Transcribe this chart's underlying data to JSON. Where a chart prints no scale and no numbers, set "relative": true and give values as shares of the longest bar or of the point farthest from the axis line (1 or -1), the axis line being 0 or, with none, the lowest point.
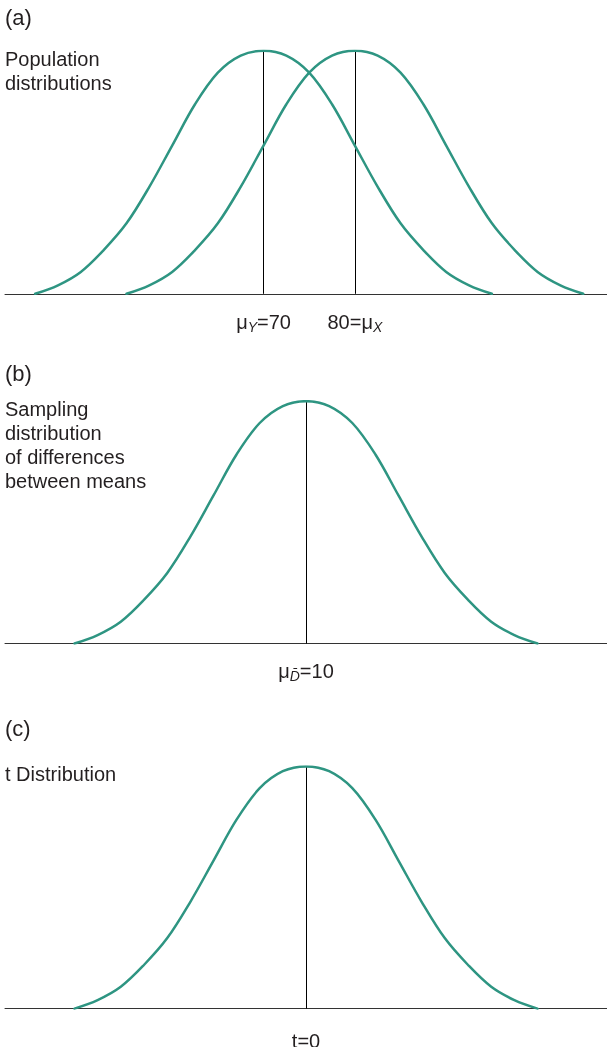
{
  "chart_data": [
    {
      "type": "line",
      "title": "(a)",
      "subtitle": "Population\ndistributions",
      "relative": true,
      "marker": "none",
      "tick_labels": "x",
      "xlim": [
        41.7,
        107.6
      ],
      "xticks": [
        {
          "value": 70,
          "label": "μ$_{Y}$=70"
        },
        {
          "value": 80,
          "label": "80=μ$_{X}$"
        }
      ],
      "series": [
        {
          "color": "#2e9582",
          "x": [
            45,
            47.5,
            50,
            52.5,
            55,
            57.5,
            60,
            62.5,
            65,
            67.5,
            70,
            72.5,
            75,
            77.5,
            80,
            82.5,
            85,
            87.5,
            90,
            92.5,
            95
          ],
          "values": [
            0,
            0.035,
            0.09,
            0.18,
            0.29,
            0.44,
            0.61,
            0.78,
            0.91,
            0.98,
            1,
            0.98,
            0.91,
            0.78,
            0.61,
            0.44,
            0.29,
            0.18,
            0.09,
            0.035,
            0
          ]
        },
        {
          "color": "#2e9582",
          "x": [
            55,
            57.5,
            60,
            62.5,
            65,
            67.5,
            70,
            72.5,
            75,
            77.5,
            80,
            82.5,
            85,
            87.5,
            90,
            92.5,
            95,
            97.5,
            100,
            102.5,
            105
          ],
          "values": [
            0,
            0.035,
            0.09,
            0.18,
            0.29,
            0.44,
            0.61,
            0.78,
            0.91,
            0.98,
            1,
            0.98,
            0.91,
            0.78,
            0.61,
            0.44,
            0.29,
            0.18,
            0.09,
            0.035,
            0
          ]
        }
      ],
      "ref_lines": [
        {
          "axis": "x",
          "value": 70,
          "color": "#000000"
        },
        {
          "axis": "x",
          "value": 80,
          "color": "#000000"
        }
      ]
    },
    {
      "type": "line",
      "title": "(b)",
      "subtitle": "Sampling\ndistribution\nof differences\nbetween means",
      "xlabel": "μ$_{D̄}$=10",
      "relative": true,
      "marker": "none",
      "tick_labels": "x",
      "categories": [
        null,
        null,
        null,
        null,
        null,
        null,
        null,
        null,
        null,
        null,
        null,
        null,
        null,
        null,
        null,
        null,
        null,
        null,
        null,
        null,
        null,
        null,
        null,
        null,
        null,
        null,
        null
      ],
      "series": [
        {
          "color": "#2e9582",
          "values": [
            null,
            null,
            null,
            0,
            0.035,
            0.09,
            0.18,
            0.29,
            0.44,
            0.61,
            0.78,
            0.91,
            0.98,
            1,
            0.98,
            0.91,
            0.78,
            0.61,
            0.44,
            0.29,
            0.18,
            0.09,
            0.035,
            0,
            null,
            null,
            null
          ]
        }
      ]
    },
    {
      "type": "line",
      "title": "(c)",
      "subtitle": "t Distribution",
      "xlabel": "t=0",
      "relative": true,
      "marker": "none",
      "tick_labels": "x",
      "categories": [
        null,
        null,
        null,
        null,
        null,
        null,
        null,
        null,
        null,
        null,
        null,
        null,
        null,
        null,
        null,
        null,
        null,
        null,
        null,
        null,
        null,
        null,
        null,
        null,
        null,
        null,
        null
      ],
      "series": [
        {
          "color": "#2e9582",
          "values": [
            null,
            null,
            null,
            0,
            0.035,
            0.09,
            0.18,
            0.29,
            0.44,
            0.61,
            0.78,
            0.91,
            0.98,
            1,
            0.98,
            0.91,
            0.78,
            0.61,
            0.44,
            0.29,
            0.18,
            0.09,
            0.035,
            0,
            null,
            null,
            null
          ]
        }
      ]
    }
  ]
}
